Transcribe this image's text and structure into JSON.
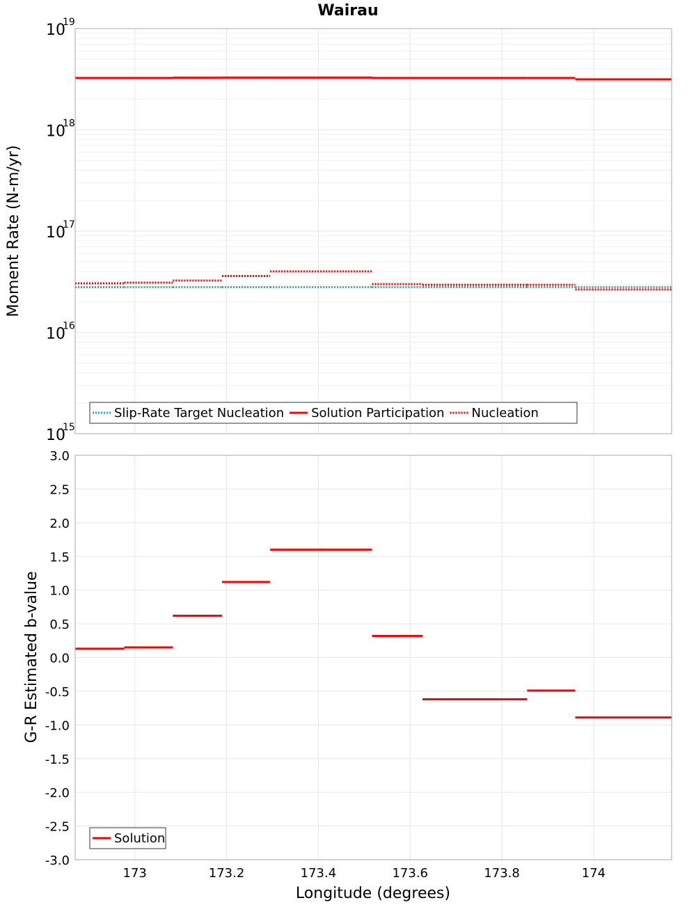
{
  "chart_data": [
    {
      "type": "line",
      "title": "Wairau",
      "xlabel": "",
      "ylabel": "Moment Rate (N-m/yr)",
      "yscale": "log",
      "ylim": [
        1000000000000000.0,
        1e+19
      ],
      "xlim": [
        172.87,
        174.17
      ],
      "y_ticks": [
        {
          "base": "10",
          "exp": "19"
        },
        {
          "base": "10",
          "exp": "18"
        },
        {
          "base": "10",
          "exp": "17"
        },
        {
          "base": "10",
          "exp": "16"
        },
        {
          "base": "10",
          "exp": "15"
        }
      ],
      "y_tick_values": [
        1e+19,
        1e+18,
        1e+17,
        1e+16,
        1000000000000000.0
      ],
      "legend_position": "bottom-left",
      "series": [
        {
          "name": "Slip-Rate Target Nucleation",
          "color": "#20b2c0",
          "style": "dotted",
          "segments": [
            {
              "x0": 172.87,
              "x1": 172.977,
              "y": 2.8e+16
            },
            {
              "x0": 172.977,
              "x1": 173.083,
              "y": 2.8e+16
            },
            {
              "x0": 173.083,
              "x1": 173.19,
              "y": 2.8e+16
            },
            {
              "x0": 173.19,
              "x1": 173.295,
              "y": 2.8e+16
            },
            {
              "x0": 173.295,
              "x1": 173.517,
              "y": 2.8e+16
            },
            {
              "x0": 173.517,
              "x1": 173.627,
              "y": 2.8e+16
            },
            {
              "x0": 173.627,
              "x1": 173.855,
              "y": 2.8e+16
            },
            {
              "x0": 173.855,
              "x1": 173.96,
              "y": 2.8e+16
            },
            {
              "x0": 173.96,
              "x1": 174.17,
              "y": 2.8e+16
            }
          ]
        },
        {
          "name": "Solution Participation",
          "color": "#ff0000",
          "style": "solid",
          "segments": [
            {
              "x0": 172.87,
              "x1": 172.977,
              "y": 3.25e+18
            },
            {
              "x0": 172.977,
              "x1": 173.083,
              "y": 3.25e+18
            },
            {
              "x0": 173.083,
              "x1": 173.19,
              "y": 3.27e+18
            },
            {
              "x0": 173.19,
              "x1": 173.295,
              "y": 3.28e+18
            },
            {
              "x0": 173.295,
              "x1": 173.517,
              "y": 3.28e+18
            },
            {
              "x0": 173.517,
              "x1": 173.627,
              "y": 3.25e+18
            },
            {
              "x0": 173.627,
              "x1": 173.855,
              "y": 3.25e+18
            },
            {
              "x0": 173.855,
              "x1": 173.96,
              "y": 3.25e+18
            },
            {
              "x0": 173.96,
              "x1": 174.17,
              "y": 3.15e+18
            }
          ]
        },
        {
          "name": "Nucleation",
          "color": "#ff0000",
          "style": "dotted",
          "segments": [
            {
              "x0": 172.87,
              "x1": 172.977,
              "y": 3.05e+16
            },
            {
              "x0": 172.977,
              "x1": 173.083,
              "y": 3.1e+16
            },
            {
              "x0": 173.083,
              "x1": 173.19,
              "y": 3.25e+16
            },
            {
              "x0": 173.19,
              "x1": 173.295,
              "y": 3.6e+16
            },
            {
              "x0": 173.295,
              "x1": 173.517,
              "y": 4e+16
            },
            {
              "x0": 173.517,
              "x1": 173.627,
              "y": 3e+16
            },
            {
              "x0": 173.627,
              "x1": 173.855,
              "y": 2.95e+16
            },
            {
              "x0": 173.855,
              "x1": 173.96,
              "y": 2.95e+16
            },
            {
              "x0": 173.96,
              "x1": 174.17,
              "y": 2.65e+16
            }
          ]
        }
      ]
    },
    {
      "type": "line",
      "title": "",
      "xlabel": "Longitude (degrees)",
      "ylabel": "G-R Estimated b-value",
      "ylim": [
        -3.0,
        3.0
      ],
      "xlim": [
        172.87,
        174.17
      ],
      "x_tick_values": [
        173.0,
        173.2,
        173.4,
        173.6,
        173.8,
        174.0
      ],
      "x_tick_labels": [
        "173",
        "173.2",
        "173.4",
        "173.6",
        "173.8",
        "174"
      ],
      "y_tick_values": [
        3.0,
        2.5,
        2.0,
        1.5,
        1.0,
        0.5,
        0.0,
        -0.5,
        -1.0,
        -1.5,
        -2.0,
        -2.5,
        -3.0
      ],
      "y_tick_labels": [
        "3.0",
        "2.5",
        "2.0",
        "1.5",
        "1.0",
        "0.5",
        "0.0",
        "-0.5",
        "-1.0",
        "-1.5",
        "-2.0",
        "-2.5",
        "-3.0"
      ],
      "legend_position": "bottom-left",
      "series": [
        {
          "name": "Solution",
          "color": "#ff0000",
          "style": "solid",
          "segments": [
            {
              "x0": 172.87,
              "x1": 172.977,
              "y": 0.13
            },
            {
              "x0": 172.977,
              "x1": 173.083,
              "y": 0.15
            },
            {
              "x0": 173.083,
              "x1": 173.19,
              "y": 0.62
            },
            {
              "x0": 173.19,
              "x1": 173.295,
              "y": 1.12
            },
            {
              "x0": 173.295,
              "x1": 173.517,
              "y": 1.6
            },
            {
              "x0": 173.517,
              "x1": 173.627,
              "y": 0.32
            },
            {
              "x0": 173.627,
              "x1": 173.855,
              "y": -0.62
            },
            {
              "x0": 173.855,
              "x1": 173.96,
              "y": -0.49
            },
            {
              "x0": 173.96,
              "x1": 174.17,
              "y": -0.89
            }
          ]
        }
      ]
    }
  ]
}
